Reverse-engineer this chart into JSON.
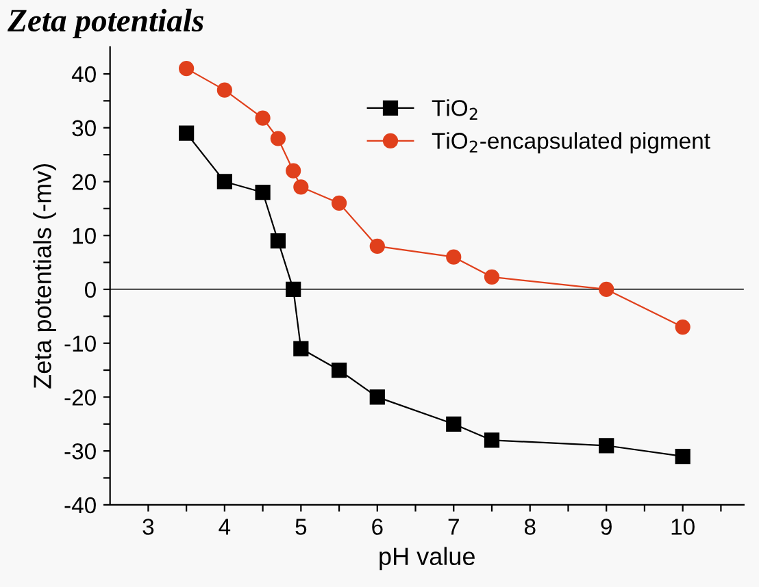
{
  "chart_data": {
    "type": "line",
    "title": "Zeta potentials",
    "xlabel": "pH value",
    "ylabel": "Zeta potentials (-mv)",
    "x": [
      3.5,
      4,
      4.5,
      4.7,
      4.9,
      5,
      5.5,
      6,
      7,
      7.5,
      9,
      10
    ],
    "series": [
      {
        "name": "TiO$_{2}$",
        "color": "#000000",
        "marker": "square",
        "values": [
          29,
          20,
          18,
          9,
          0,
          -11,
          -15,
          -20,
          -25,
          -28,
          -29,
          -31
        ]
      },
      {
        "name": "TiO$_{2}$-encapsulated pigment",
        "color": "#e0401c",
        "marker": "circle",
        "values": [
          41,
          37,
          31.8,
          28,
          22,
          19,
          16,
          8,
          6,
          2.3,
          0,
          -7
        ]
      }
    ],
    "xlim": [
      2.5,
      10.8
    ],
    "ylim": [
      -40,
      45
    ],
    "xticks": [
      3,
      {
        "value": 3.5,
        "label": null
      },
      4,
      {
        "value": 4.5,
        "label": null
      },
      5,
      {
        "value": 5.5,
        "label": null
      },
      6,
      {
        "value": 6.5,
        "label": null
      },
      7,
      {
        "value": 7.5,
        "label": null
      },
      8,
      {
        "value": 8.5,
        "label": null
      },
      9,
      {
        "value": 9.5,
        "label": null
      },
      10,
      {
        "value": 10.5,
        "label": null
      }
    ],
    "yticks": [
      -40,
      {
        "value": -35,
        "label": null
      },
      -30,
      {
        "value": -25,
        "label": null
      },
      -20,
      {
        "value": -15,
        "label": null
      },
      -10,
      {
        "value": -5,
        "label": null
      },
      0,
      {
        "value": 5,
        "label": null
      },
      10,
      {
        "value": 15,
        "label": null
      },
      20,
      {
        "value": 25,
        "label": null
      },
      30,
      {
        "value": 35,
        "label": null
      },
      40
    ],
    "ref_lines": [
      {
        "axis": "y",
        "value": 0,
        "color": "#555555"
      }
    ],
    "legend": "top right",
    "grid": false,
    "line_style": "solid"
  }
}
